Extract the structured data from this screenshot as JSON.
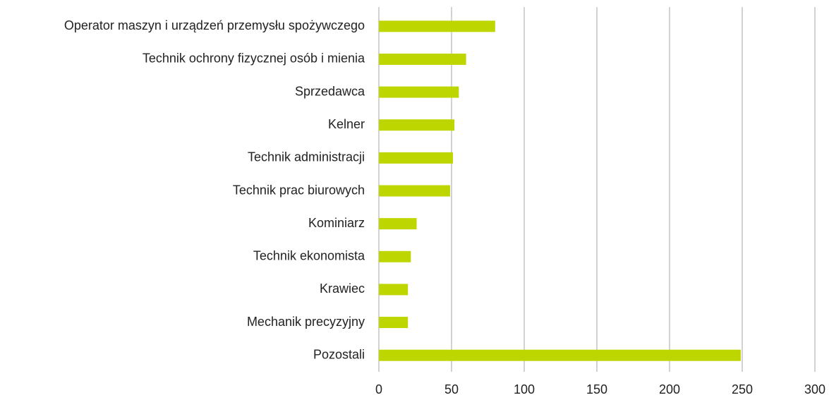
{
  "chart_data": {
    "type": "bar",
    "categories": [
      "Operator maszyn i urządzeń przemysłu spożywczego",
      "Technik ochrony fizycznej osób i mienia",
      "Sprzedawca",
      "Kelner",
      "Technik administracji",
      "Technik prac biurowych",
      "Kominiarz",
      "Technik ekonomista",
      "Krawiec",
      "Mechanik precyzyjny",
      "Pozostali"
    ],
    "values": [
      80,
      60,
      55,
      52,
      51,
      49,
      26,
      22,
      20,
      20,
      249
    ],
    "color": "#bed600",
    "xlim": [
      0,
      300
    ],
    "xticks": [
      0,
      50,
      100,
      150,
      200,
      250,
      300
    ],
    "grid": true
  }
}
